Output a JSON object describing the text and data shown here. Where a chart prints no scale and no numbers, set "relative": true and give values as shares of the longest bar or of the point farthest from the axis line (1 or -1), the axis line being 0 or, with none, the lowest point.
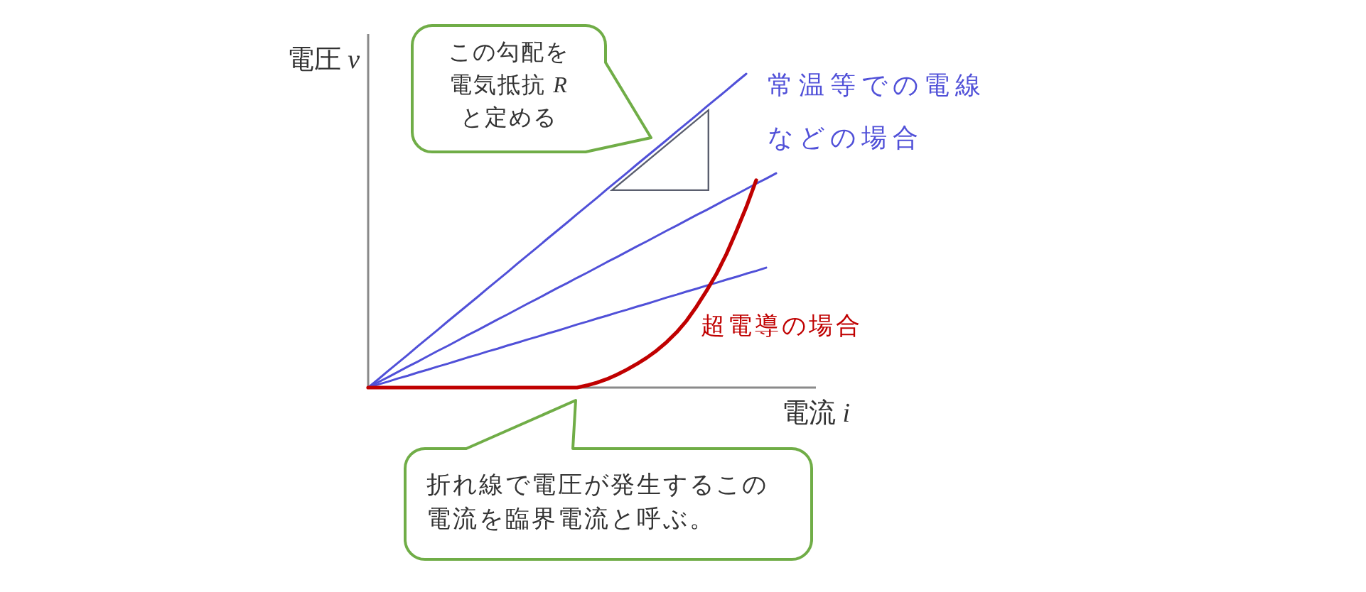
{
  "chart_data": {
    "type": "line",
    "relative": true,
    "xlabel": "電流 *i*",
    "ylabel": "電圧 *v*",
    "categories": [
      null,
      null,
      null,
      null,
      null,
      null,
      null,
      null,
      null,
      null,
      null,
      null,
      null,
      null,
      null,
      null,
      null,
      null,
      null,
      null,
      null,
      null,
      null,
      null,
      null,
      null,
      null,
      null,
      null,
      null,
      null,
      null,
      null,
      null,
      null,
      null,
      null,
      null,
      null,
      null,
      null,
      null,
      null,
      null,
      null,
      null
    ],
    "series": [
      {
        "name": "常温等での電線などの場合",
        "color": "#5050d8",
        "values": [
          0,
          0.026,
          0.053,
          0.079,
          0.105,
          0.132,
          0.158,
          0.184,
          0.211,
          0.237,
          0.263,
          0.289,
          0.316,
          0.342,
          0.368,
          0.395,
          0.421,
          0.447,
          0.474,
          0.5,
          0.526,
          0.553,
          0.579,
          0.605,
          0.632,
          0.658,
          0.684,
          0.711,
          0.737,
          0.763,
          0.789,
          0.816,
          0.842,
          0.868,
          0.895,
          0.921,
          0.947,
          0.974,
          1,
          null,
          null,
          null,
          null,
          null,
          null,
          null
        ]
      },
      {
        "color": "#5050d8",
        "values": [
          0,
          0.017,
          0.033,
          0.05,
          0.067,
          0.083,
          0.1,
          0.117,
          0.133,
          0.15,
          0.167,
          0.183,
          0.2,
          0.217,
          0.233,
          0.25,
          0.267,
          0.283,
          0.3,
          0.317,
          0.333,
          0.35,
          0.366,
          0.383,
          0.4,
          0.416,
          0.433,
          0.45,
          0.466,
          0.483,
          0.5,
          0.516,
          0.533,
          0.55,
          0.566,
          0.583,
          0.6,
          0.616,
          0.633,
          0.65,
          0.666,
          0.683,
          null,
          null,
          null,
          null
        ]
      },
      {
        "color": "#5050d8",
        "values": [
          0,
          0.01,
          0.019,
          0.029,
          0.038,
          0.048,
          0.057,
          0.067,
          0.076,
          0.086,
          0.096,
          0.105,
          0.115,
          0.124,
          0.134,
          0.143,
          0.153,
          0.162,
          0.172,
          0.181,
          0.191,
          0.201,
          0.21,
          0.22,
          0.229,
          0.239,
          0.248,
          0.258,
          0.267,
          0.277,
          0.287,
          0.296,
          0.306,
          0.315,
          0.325,
          0.334,
          0.344,
          0.353,
          0.363,
          0.372,
          0.382,
          null,
          null,
          null,
          null,
          null
        ]
      },
      {
        "name": "超電導の場合",
        "color": "#c00000",
        "values": [
          0,
          0,
          0,
          0,
          0,
          0,
          0,
          0,
          0,
          0,
          0,
          0,
          0,
          0,
          0,
          0,
          0,
          0,
          0,
          0,
          0,
          0,
          0.007,
          0.016,
          0.027,
          0.041,
          0.057,
          0.075,
          0.095,
          0.118,
          0.145,
          0.176,
          0.213,
          0.258,
          0.308,
          0.362,
          0.425,
          0.498,
          0.575,
          0.661,
          null,
          null,
          null,
          null,
          null,
          null
        ]
      }
    ],
    "annotations": [
      "この勾配を電気抵抗 *R* と定める",
      "折れ線で電圧が発生するこの電流を臨界電流と呼ぶ。"
    ]
  }
}
